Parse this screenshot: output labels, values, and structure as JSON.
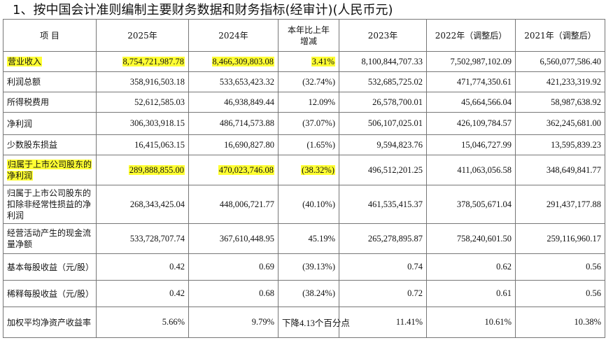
{
  "title": "1、按中国会计准则编制主要财务数据和财务指标(经审计)(人民币元)",
  "headers": [
    "项 目",
    "2025年",
    "2024年",
    "本年比上年增减",
    "2023年",
    "2022年（调整后）",
    "2021年（调整后）"
  ],
  "rows": [
    {
      "label": "营业收入",
      "highlight": true,
      "values": [
        "8,754,721,987.78",
        "8,466,309,803.08",
        "3.41%",
        "8,100,844,707.33",
        "7,502,987,102.09",
        "6,560,077,586.40"
      ]
    },
    {
      "label": "利润总额",
      "highlight": false,
      "values": [
        "358,916,503.18",
        "533,653,423.32",
        "(32.74%)",
        "532,685,725.02",
        "471,774,350.61",
        "421,233,319.92"
      ]
    },
    {
      "label": "所得税费用",
      "highlight": false,
      "values": [
        "52,612,585.03",
        "46,938,849.44",
        "12.09%",
        "26,578,700.01",
        "45,664,566.04",
        "58,987,638.92"
      ]
    },
    {
      "label": "净利润",
      "highlight": false,
      "values": [
        "306,303,918.15",
        "486,714,573.88",
        "(37.07%)",
        "506,107,025.01",
        "426,109,784.57",
        "362,245,681.00"
      ]
    },
    {
      "label": "少数股东损益",
      "highlight": false,
      "values": [
        "16,415,063.15",
        "16,690,827.80",
        "(1.65%)",
        "9,594,823.76",
        "15,046,727.99",
        "13,595,839.23"
      ]
    },
    {
      "label": "归属于上市公司股东的净利润",
      "highlight": true,
      "values": [
        "289,888,855.00",
        "470,023,746.08",
        "(38.32%)",
        "496,512,201.25",
        "411,063,056.58",
        "348,649,841.77"
      ]
    },
    {
      "label": "归属于上市公司股东的扣除非经常性损益的净利润",
      "highlight": false,
      "values": [
        "268,343,425.04",
        "448,006,721.77",
        "(40.10%)",
        "461,535,415.37",
        "378,505,671.04",
        "291,437,177.88"
      ]
    },
    {
      "label": "经营活动产生的现金流量净额",
      "highlight": false,
      "values": [
        "533,728,707.74",
        "367,610,448.95",
        "45.19%",
        "265,278,895.87",
        "758,240,601.50",
        "259,116,960.17"
      ]
    },
    {
      "label": "基本每股收益（元/股）",
      "highlight": false,
      "values": [
        "0.42",
        "0.69",
        "(39.13%)",
        "0.74",
        "0.62",
        "0.56"
      ]
    },
    {
      "label": "稀释每股收益（元/股）",
      "highlight": false,
      "values": [
        "0.42",
        "0.68",
        "(38.24%)",
        "0.72",
        "0.61",
        "0.56"
      ]
    },
    {
      "label": "加权平均净资产收益率",
      "highlight": false,
      "values": [
        "5.66%",
        "9.79%",
        "下降4.13个百分点",
        "11.41%",
        "10.61%",
        "10.38%"
      ]
    }
  ]
}
